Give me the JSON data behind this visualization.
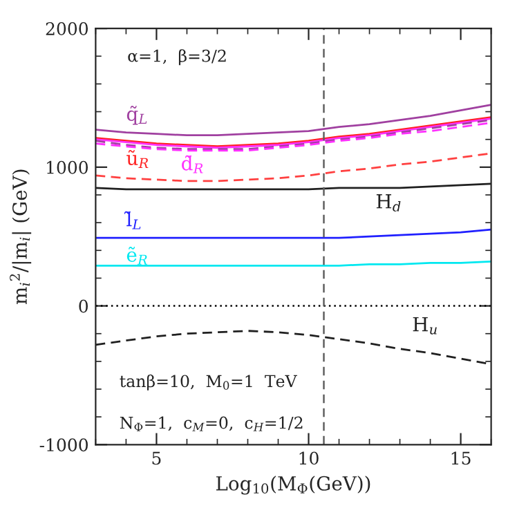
{
  "chart_data": {
    "type": "line",
    "xlabel": "Log$_{10}$(M$_{Φ}$(GeV))",
    "ylabel": "m$_{i}$$^{2}$/|m$_{i}$| (GeV)",
    "xlim": [
      3,
      16
    ],
    "xticks": [
      5,
      10,
      15
    ],
    "ylim": [
      -1000,
      2000
    ],
    "yticks": [
      -1000,
      0,
      1000,
      2000
    ],
    "grid": false,
    "legend": false,
    "annotations": [
      "α=1,  β=3/2",
      "tanβ=10,  M$_{0}$=1  TeV",
      "N$_{Φ}$=1,  c$_{M}$=0,  c$_{H}$=1/2"
    ],
    "ref_lines": [
      {
        "axis": "y",
        "value": 0,
        "color": "#000000",
        "line_style": "dotted"
      },
      {
        "axis": "x",
        "value": 10.5,
        "color": "#606060",
        "line_style": "dashed"
      }
    ],
    "x": [
      3,
      4,
      5,
      6,
      7,
      8,
      9,
      10,
      11,
      12,
      13,
      14,
      15,
      16
    ],
    "series": [
      {
        "name": "q̃$_{L}$",
        "color": "#a040a0",
        "line_style": "solid",
        "values": [
          1270,
          1250,
          1240,
          1230,
          1230,
          1240,
          1250,
          1260,
          1290,
          1310,
          1340,
          1370,
          1410,
          1450
        ]
      },
      {
        "name": "ũ$_{R}$",
        "color": "#ff2020",
        "line_style": "solid",
        "values": [
          1210,
          1190,
          1170,
          1160,
          1150,
          1160,
          1170,
          1190,
          1220,
          1240,
          1270,
          1300,
          1330,
          1360
        ]
      },
      {
        "name": "d̃$_{R}$",
        "color": "#ff30ff",
        "line_style": "solid",
        "values": [
          1200,
          1180,
          1160,
          1150,
          1140,
          1150,
          1160,
          1180,
          1210,
          1230,
          1260,
          1290,
          1320,
          1350
        ]
      },
      {
        "color": "#a040a0",
        "line_style": "dashed",
        "values": [
          1190,
          1160,
          1140,
          1130,
          1130,
          1130,
          1150,
          1170,
          1200,
          1220,
          1250,
          1280,
          1310,
          1340
        ]
      },
      {
        "color": "#ff30ff",
        "line_style": "dashed",
        "values": [
          1170,
          1150,
          1130,
          1120,
          1120,
          1120,
          1140,
          1160,
          1190,
          1210,
          1240,
          1260,
          1290,
          1320
        ]
      },
      {
        "color": "#ff4040",
        "line_style": "dashed",
        "values": [
          940,
          920,
          910,
          900,
          900,
          910,
          920,
          940,
          970,
          990,
          1020,
          1040,
          1070,
          1100
        ]
      },
      {
        "name": "H$_{d}$",
        "color": "#202020",
        "line_style": "solid",
        "values": [
          850,
          840,
          840,
          840,
          840,
          840,
          840,
          840,
          850,
          850,
          850,
          860,
          870,
          880
        ]
      },
      {
        "name": "l̃$_{L}$",
        "color": "#2020ff",
        "line_style": "solid",
        "values": [
          490,
          490,
          490,
          490,
          490,
          490,
          490,
          490,
          490,
          500,
          510,
          520,
          530,
          550
        ]
      },
      {
        "name": "ẽ$_{R}$",
        "color": "#00e8f0",
        "line_style": "solid",
        "values": [
          290,
          290,
          290,
          290,
          290,
          290,
          290,
          290,
          290,
          300,
          300,
          310,
          310,
          320
        ]
      },
      {
        "name": "H$_{u}$",
        "color": "#202020",
        "line_style": "dashed",
        "values": [
          -280,
          -250,
          -220,
          -200,
          -190,
          -180,
          -190,
          -210,
          -240,
          -270,
          -310,
          -340,
          -380,
          -420
        ]
      }
    ]
  }
}
